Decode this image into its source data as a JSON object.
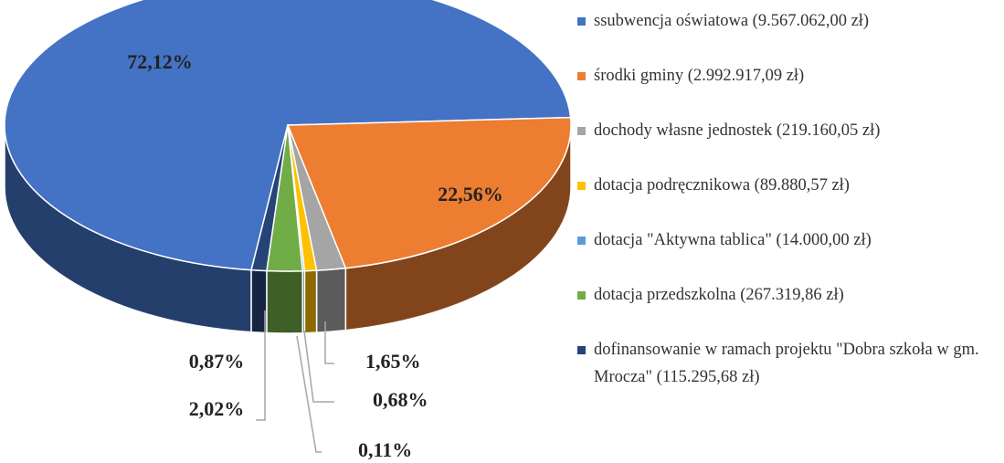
{
  "chart_data": {
    "type": "pie",
    "categories": [
      "ssubwencja oświatowa (9.567.062,00 zł)",
      "środki gminy (2.992.917,09 zł)",
      "dochody własne jednostek (219.160,05 zł)",
      "dotacja podręcznikowa (89.880,57 zł)",
      "dotacja \"Aktywna tablica\" (14.000,00 zł)",
      "dotacja przedszkolna (267.319,86 zł)",
      "dofinansowanie w ramach projektu \"Dobra szkoła w gm. Mrocza\" (115.295,68 zł)"
    ],
    "values": [
      72.12,
      22.56,
      1.65,
      0.68,
      0.11,
      2.02,
      0.87
    ],
    "value_labels": [
      "72,12%",
      "22,56%",
      "1,65%",
      "0,68%",
      "0,11%",
      "2,02%",
      "0,87%"
    ],
    "colors": [
      "#4472c4",
      "#ed7d31",
      "#a5a5a5",
      "#ffc000",
      "#5b9bd5",
      "#70ad47",
      "#264478"
    ],
    "legend": "right"
  }
}
